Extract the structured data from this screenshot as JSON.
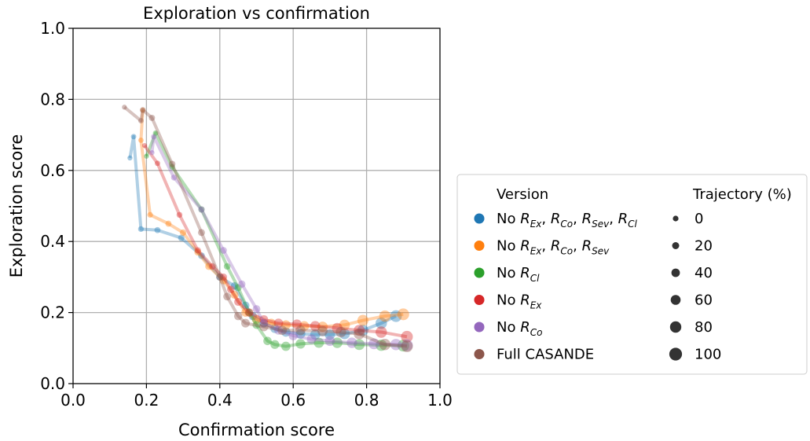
{
  "chart_data": {
    "type": "scatter",
    "title": "Exploration vs confirmation",
    "xlabel": "Confirmation score",
    "ylabel": "Exploration score",
    "xlim": [
      0.0,
      1.0
    ],
    "ylim": [
      0.0,
      1.0
    ],
    "xticks": [
      "0.0",
      "0.2",
      "0.4",
      "0.6",
      "0.8",
      "1.0"
    ],
    "yticks": [
      "0.0",
      "0.2",
      "0.4",
      "0.6",
      "0.8",
      "1.0"
    ],
    "grid": true,
    "legend_placement": "right",
    "legend": {
      "version_title": "Version",
      "size_title": "Trajectory (%)",
      "sizes": [
        "0",
        "20",
        "40",
        "60",
        "80",
        "100"
      ]
    },
    "series": [
      {
        "name": "No R_Ex, R_Co, R_Sev, R_Cl",
        "sub": [
          "Ex",
          "Co",
          "Sev",
          "Cl"
        ],
        "prefix": "No",
        "color": "#1f77b4",
        "points": [
          [
            0.155,
            0.635
          ],
          [
            0.165,
            0.695
          ],
          [
            0.185,
            0.435
          ],
          [
            0.23,
            0.432
          ],
          [
            0.295,
            0.41
          ],
          [
            0.35,
            0.36
          ],
          [
            0.4,
            0.3
          ],
          [
            0.44,
            0.275
          ],
          [
            0.47,
            0.22
          ],
          [
            0.49,
            0.19
          ],
          [
            0.52,
            0.17
          ],
          [
            0.55,
            0.155
          ],
          [
            0.58,
            0.145
          ],
          [
            0.62,
            0.14
          ],
          [
            0.66,
            0.138
          ],
          [
            0.7,
            0.138
          ],
          [
            0.74,
            0.14
          ],
          [
            0.79,
            0.15
          ],
          [
            0.84,
            0.17
          ],
          [
            0.88,
            0.19
          ]
        ]
      },
      {
        "name": "No R_Ex, R_Co, R_Sev",
        "sub": [
          "Ex",
          "Co",
          "Sev"
        ],
        "prefix": "No",
        "color": "#ff7f0e",
        "points": [
          [
            0.19,
            0.77
          ],
          [
            0.185,
            0.685
          ],
          [
            0.21,
            0.475
          ],
          [
            0.26,
            0.45
          ],
          [
            0.3,
            0.425
          ],
          [
            0.34,
            0.37
          ],
          [
            0.37,
            0.33
          ],
          [
            0.41,
            0.29
          ],
          [
            0.44,
            0.25
          ],
          [
            0.47,
            0.2
          ],
          [
            0.5,
            0.18
          ],
          [
            0.54,
            0.17
          ],
          [
            0.58,
            0.165
          ],
          [
            0.63,
            0.162
          ],
          [
            0.68,
            0.16
          ],
          [
            0.74,
            0.165
          ],
          [
            0.79,
            0.178
          ],
          [
            0.85,
            0.19
          ],
          [
            0.9,
            0.195
          ]
        ]
      },
      {
        "name": "No R_Cl",
        "sub": [
          "Cl"
        ],
        "prefix": "No",
        "color": "#2ca02c",
        "points": [
          [
            0.2,
            0.64
          ],
          [
            0.225,
            0.705
          ],
          [
            0.27,
            0.61
          ],
          [
            0.35,
            0.49
          ],
          [
            0.42,
            0.33
          ],
          [
            0.45,
            0.27
          ],
          [
            0.48,
            0.2
          ],
          [
            0.5,
            0.165
          ],
          [
            0.53,
            0.12
          ],
          [
            0.55,
            0.11
          ],
          [
            0.58,
            0.105
          ],
          [
            0.62,
            0.112
          ],
          [
            0.67,
            0.115
          ],
          [
            0.72,
            0.115
          ],
          [
            0.78,
            0.11
          ],
          [
            0.84,
            0.108
          ],
          [
            0.9,
            0.107
          ]
        ]
      },
      {
        "name": "No R_Ex",
        "sub": [
          "Ex"
        ],
        "prefix": "No",
        "color": "#d62728",
        "points": [
          [
            0.195,
            0.67
          ],
          [
            0.23,
            0.62
          ],
          [
            0.29,
            0.475
          ],
          [
            0.34,
            0.375
          ],
          [
            0.38,
            0.33
          ],
          [
            0.41,
            0.3
          ],
          [
            0.43,
            0.265
          ],
          [
            0.45,
            0.23
          ],
          [
            0.48,
            0.2
          ],
          [
            0.52,
            0.18
          ],
          [
            0.56,
            0.17
          ],
          [
            0.61,
            0.167
          ],
          [
            0.66,
            0.162
          ],
          [
            0.72,
            0.156
          ],
          [
            0.78,
            0.15
          ],
          [
            0.84,
            0.145
          ],
          [
            0.91,
            0.132
          ]
        ]
      },
      {
        "name": "No R_Co",
        "sub": [
          "Co"
        ],
        "prefix": "No",
        "color": "#9467bd",
        "points": [
          [
            0.215,
            0.65
          ],
          [
            0.22,
            0.695
          ],
          [
            0.275,
            0.58
          ],
          [
            0.35,
            0.49
          ],
          [
            0.41,
            0.375
          ],
          [
            0.46,
            0.28
          ],
          [
            0.5,
            0.21
          ],
          [
            0.52,
            0.17
          ],
          [
            0.56,
            0.15
          ],
          [
            0.6,
            0.135
          ],
          [
            0.65,
            0.125
          ],
          [
            0.7,
            0.12
          ],
          [
            0.76,
            0.115
          ],
          [
            0.82,
            0.112
          ],
          [
            0.88,
            0.11
          ],
          [
            0.91,
            0.108
          ]
        ]
      },
      {
        "name": "Full CASANDE",
        "sub": [],
        "prefix": "Full CASANDE",
        "color": "#8c564b",
        "points": [
          [
            0.14,
            0.778
          ],
          [
            0.185,
            0.74
          ],
          [
            0.19,
            0.77
          ],
          [
            0.215,
            0.748
          ],
          [
            0.27,
            0.618
          ],
          [
            0.35,
            0.425
          ],
          [
            0.4,
            0.3
          ],
          [
            0.42,
            0.245
          ],
          [
            0.45,
            0.19
          ],
          [
            0.47,
            0.17
          ],
          [
            0.52,
            0.16
          ],
          [
            0.57,
            0.15
          ],
          [
            0.62,
            0.15
          ],
          [
            0.68,
            0.148
          ],
          [
            0.73,
            0.145
          ],
          [
            0.78,
            0.14
          ],
          [
            0.85,
            0.11
          ],
          [
            0.91,
            0.105
          ]
        ]
      }
    ]
  }
}
